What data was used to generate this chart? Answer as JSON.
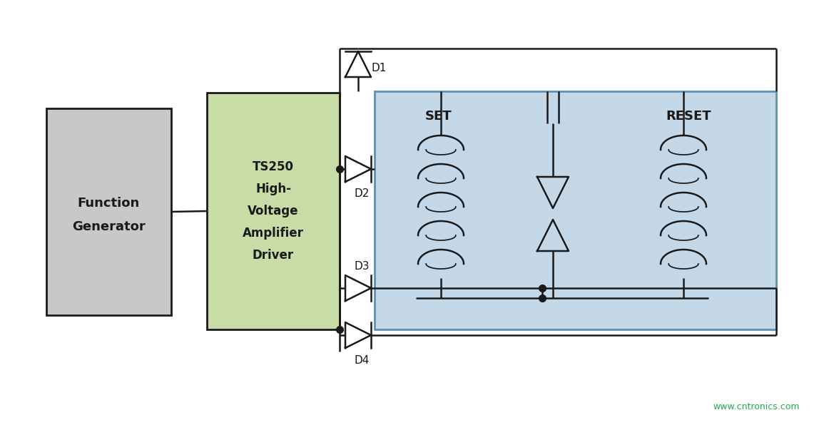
{
  "bg_color": "#ffffff",
  "relay_box_color": "#c5d8e8",
  "relay_box_edge": "#6090b0",
  "fg_box_gray": "#c8c8c8",
  "fg_box_green": "#c8dca8",
  "line_color": "#1a1a1a",
  "dot_color": "#1a1a1a",
  "text_color": "#1a1a1a",
  "watermark_color": "#22aa55",
  "watermark": "www.cntronics.com",
  "labels": {
    "D1": "D1",
    "D2": "D2",
    "D3": "D3",
    "D4": "D4",
    "SET": "SET",
    "RESET": "RESET",
    "func_gen_line1": "Function",
    "func_gen_line2": "Generator",
    "amp_line1": "TS250",
    "amp_line2": "High-",
    "amp_line3": "Voltage",
    "amp_line4": "Amplifier",
    "amp_line5": "Driver"
  },
  "figsize": [
    11.69,
    5.96
  ],
  "dpi": 100
}
